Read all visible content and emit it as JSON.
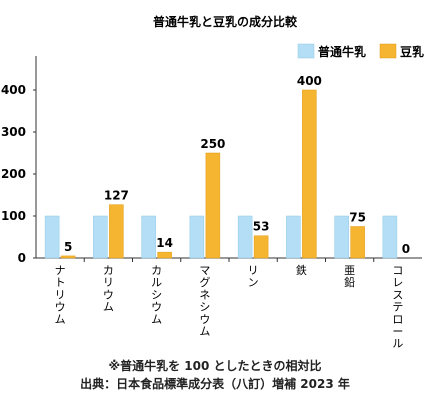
{
  "chart_data": {
    "type": "bar",
    "title": "普通牛乳と豆乳の成分比較",
    "categories": [
      "ナトリウム",
      "カリウム",
      "カルシウム",
      "マグネシウム",
      "リン",
      "鉄",
      "亜鉛",
      "コレステロール"
    ],
    "series": [
      {
        "name": "普通牛乳",
        "color": "#b3def5",
        "values": [
          100,
          100,
          100,
          100,
          100,
          100,
          100,
          100
        ]
      },
      {
        "name": "豆乳",
        "color": "#f5b531",
        "values": [
          5,
          127,
          14,
          250,
          53,
          400,
          75,
          0
        ]
      }
    ],
    "data_label_series": "豆乳",
    "ylim": [
      0,
      400
    ],
    "yticks": [
      0,
      100,
      200,
      300,
      400
    ],
    "grid": false,
    "legend": "top-right",
    "xlabel": "",
    "ylabel": ""
  },
  "notes": {
    "reference": "※普通牛乳を 100 としたときの相対比",
    "source": "出典：日本食品標準成分表（八訂）増補 2023 年"
  }
}
